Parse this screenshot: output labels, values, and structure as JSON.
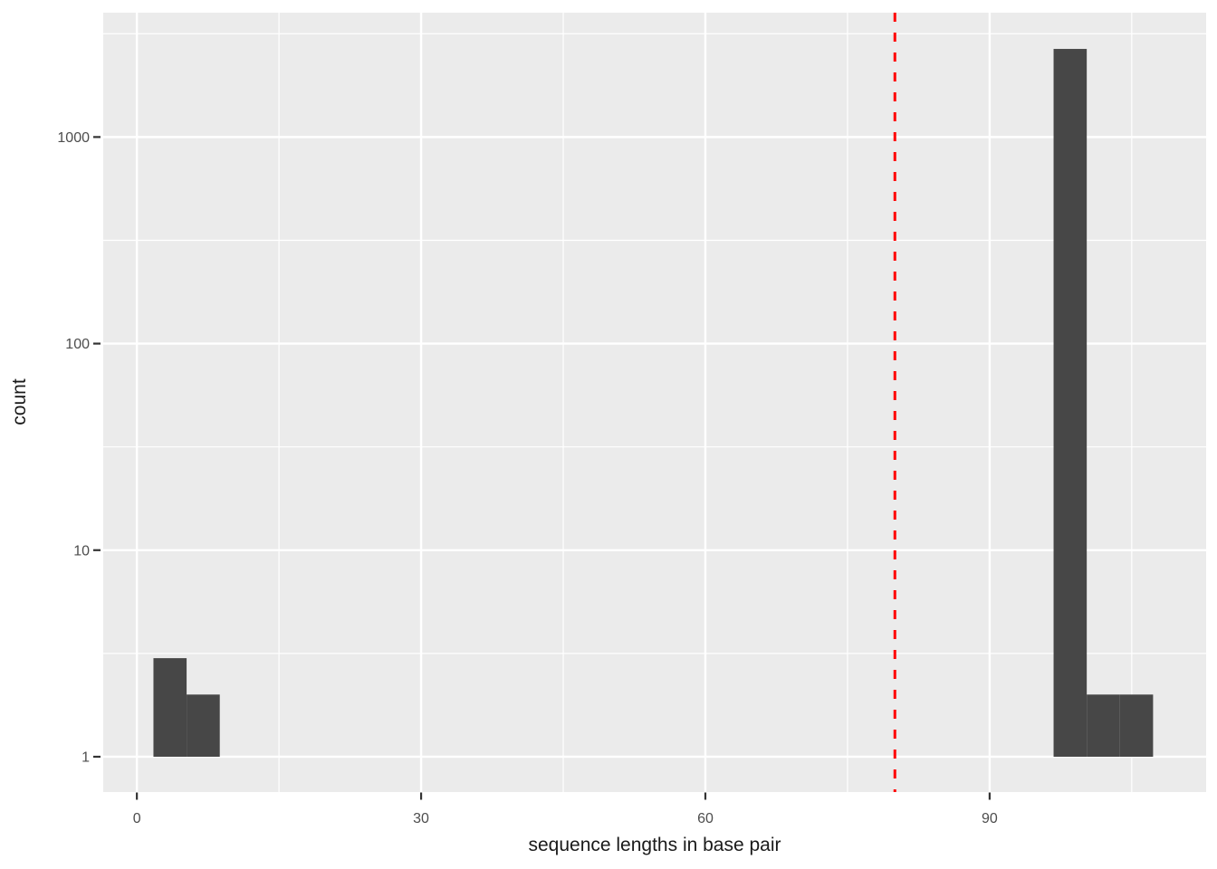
{
  "chart_data": {
    "type": "bar",
    "subtype": "histogram",
    "title": "",
    "xlabel": "sequence lengths in base pair",
    "ylabel": "count",
    "y_scale": "log10",
    "x_ticks": [
      0,
      30,
      60,
      90
    ],
    "x_minor_ticks": [
      15,
      45,
      75,
      105
    ],
    "y_ticks": [
      1,
      10,
      100,
      1000
    ],
    "y_minor_ticks": [
      3.162,
      31.62,
      316.2,
      3162
    ],
    "xlim": [
      -3.55,
      112.85
    ],
    "ylim_log10": [
      -0.171,
      3.602
    ],
    "grid": "major+minor",
    "legend": "none",
    "bins": [
      {
        "x0": 1.75,
        "x1": 5.25,
        "count": 3
      },
      {
        "x0": 5.25,
        "x1": 8.75,
        "count": 2
      },
      {
        "x0": 96.75,
        "x1": 100.25,
        "count": 2670
      },
      {
        "x0": 100.25,
        "x1": 103.75,
        "count": 2
      },
      {
        "x0": 103.75,
        "x1": 107.25,
        "count": 2
      }
    ],
    "bar_baseline": 1,
    "vline": {
      "x": 80,
      "style": "dashed",
      "color": "#ff0000"
    },
    "colors": {
      "bar": "#474747",
      "panel_background": "#ebebeb",
      "grid_major": "#ffffff",
      "grid_minor": "#ffffff",
      "tick_mark": "#333333",
      "tick_label": "#4d4d4d",
      "axis_title": "#1a1a1a",
      "figure_background": "#ffffff"
    }
  }
}
